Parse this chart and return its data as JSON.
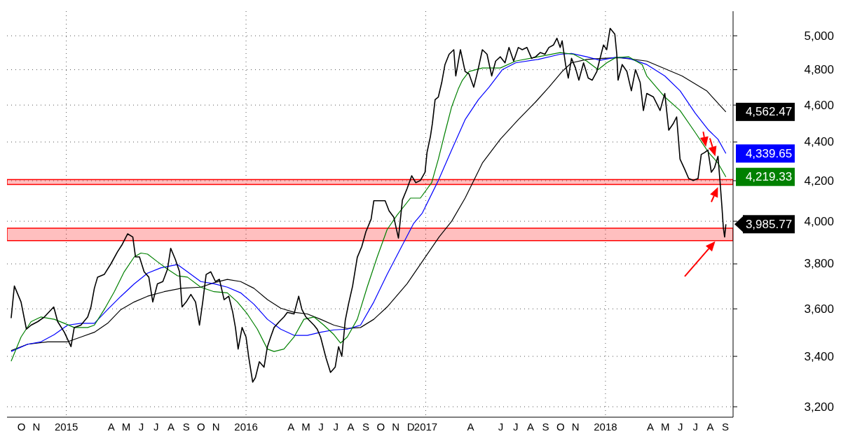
{
  "chart_data": {
    "type": "line",
    "log": "y",
    "grid": true,
    "xlim": [
      2014.67,
      2018.71
    ],
    "ylim": [
      3160,
      5150
    ],
    "yticks": [
      {
        "value": 3200,
        "label": "3,200"
      },
      {
        "value": 3400,
        "label": "3,400"
      },
      {
        "value": 3600,
        "label": "3,600"
      },
      {
        "value": 3800,
        "label": "3,800"
      },
      {
        "value": 4000,
        "label": "4,000"
      },
      {
        "value": 4200,
        "label": "4,200"
      },
      {
        "value": 4400,
        "label": "4,400"
      },
      {
        "value": 4600,
        "label": "4,600"
      },
      {
        "value": 4800,
        "label": "4,800"
      },
      {
        "value": 5000,
        "label": "5,000"
      }
    ],
    "xticks": [
      {
        "value": 2014.75,
        "label": "O"
      },
      {
        "value": 2014.833,
        "label": "N"
      },
      2015,
      {
        "value": 2015.25,
        "label": "A"
      },
      {
        "value": 2015.333,
        "label": "M"
      },
      {
        "value": 2015.417,
        "label": "J"
      },
      {
        "value": 2015.5,
        "label": "J"
      },
      {
        "value": 2015.583,
        "label": "A"
      },
      {
        "value": 2015.667,
        "label": "S"
      },
      {
        "value": 2015.75,
        "label": "O"
      },
      {
        "value": 2015.833,
        "label": "N"
      },
      2016,
      {
        "value": 2016.25,
        "label": "A"
      },
      {
        "value": 2016.333,
        "label": "M"
      },
      {
        "value": 2016.417,
        "label": "J"
      },
      {
        "value": 2016.5,
        "label": "J"
      },
      {
        "value": 2016.583,
        "label": "A"
      },
      {
        "value": 2016.667,
        "label": "S"
      },
      {
        "value": 2016.75,
        "label": "O"
      },
      {
        "value": 2016.833,
        "label": "N"
      },
      {
        "value": 2016.917,
        "label": "D"
      },
      2017,
      {
        "value": 2017.25,
        "label": "A"
      },
      {
        "value": 2017.417,
        "label": "J"
      },
      {
        "value": 2017.5,
        "label": "J"
      },
      {
        "value": 2017.583,
        "label": "A"
      },
      {
        "value": 2017.667,
        "label": "S"
      },
      {
        "value": 2017.75,
        "label": "O"
      },
      {
        "value": 2017.833,
        "label": "N"
      },
      2018,
      {
        "value": 2018.25,
        "label": "A"
      },
      {
        "value": 2018.333,
        "label": "M"
      },
      {
        "value": 2018.417,
        "label": "J"
      },
      {
        "value": 2018.5,
        "label": "J"
      },
      {
        "value": 2018.583,
        "label": "A"
      },
      {
        "value": 2018.667,
        "label": "S"
      }
    ],
    "series": [
      {
        "type": "line",
        "color": "#000000",
        "x": [
          2014.693,
          2014.711,
          2014.748,
          2014.778,
          2014.804,
          2014.841,
          2014.878,
          2014.93,
          2014.952,
          2014.989,
          2015.026,
          2015.044,
          2015.081,
          2015.119,
          2015.137,
          2015.156,
          2015.174,
          2015.211,
          2015.248,
          2015.285,
          2015.311,
          2015.341,
          2015.37,
          2015.385,
          2015.407,
          2015.433,
          2015.459,
          2015.481,
          2015.507,
          2015.537,
          2015.563,
          2015.581,
          2015.607,
          2015.63,
          2015.644,
          2015.667,
          2015.693,
          2015.719,
          2015.741,
          2015.759,
          2015.778,
          2015.804,
          2015.83,
          2015.852,
          2015.878,
          2015.904,
          2015.926,
          2015.941,
          2015.956,
          2015.978,
          2016.0,
          2016.015,
          2016.037,
          2016.052,
          2016.074,
          2016.1,
          2016.119,
          2016.137,
          2016.156,
          2016.185,
          2016.211,
          2016.23,
          2016.267,
          2016.293,
          2016.311,
          2016.333,
          2016.359,
          2016.378,
          2016.396,
          2016.415,
          2016.444,
          2016.47,
          2016.496,
          2016.515,
          2016.533,
          2016.552,
          2016.57,
          2016.593,
          2016.619,
          2016.644,
          2016.667,
          2016.696,
          2016.711,
          2016.774,
          2016.796,
          2016.822,
          2016.848,
          2016.87,
          2016.896,
          2016.922,
          2016.944,
          2016.97,
          2016.996,
          2017.007,
          2017.026,
          2017.037,
          2017.052,
          2017.07,
          2017.089,
          2017.107,
          2017.13,
          2017.156,
          2017.167,
          2017.193,
          2017.219,
          2017.241,
          2017.267,
          2017.293,
          2017.315,
          2017.341,
          2017.367,
          2017.389,
          2017.415,
          2017.441,
          2017.463,
          2017.489,
          2017.515,
          2017.537,
          2017.563,
          2017.589,
          2017.611,
          2017.637,
          2017.663,
          2017.685,
          2017.711,
          2017.73,
          2017.748,
          2017.759,
          2017.778,
          2017.793,
          2017.811,
          2017.833,
          2017.852,
          2017.878,
          2017.904,
          2017.926,
          2017.952,
          2017.97,
          2017.989,
          2018.007,
          2018.026,
          2018.052,
          2018.063,
          2018.07,
          2018.093,
          2018.119,
          2018.144,
          2018.167,
          2018.193,
          2018.211,
          2018.23,
          2018.267,
          2018.304,
          2018.33,
          2018.352,
          2018.378,
          2018.396,
          2018.415,
          2018.441,
          2018.463,
          2018.489,
          2018.515,
          2018.533,
          2018.552,
          2018.57,
          2018.589,
          2018.607,
          2018.626,
          2018.637,
          2018.648,
          2018.656,
          2018.663,
          2018.67
        ],
        "values": [
          3560,
          3700,
          3630,
          3513,
          3530,
          3545,
          3565,
          3608,
          3545,
          3500,
          3440,
          3520,
          3530,
          3565,
          3608,
          3690,
          3740,
          3752,
          3800,
          3856,
          3890,
          3940,
          3925,
          3832,
          3832,
          3764,
          3740,
          3630,
          3710,
          3720,
          3776,
          3872,
          3820,
          3764,
          3608,
          3630,
          3663,
          3630,
          3530,
          3630,
          3752,
          3764,
          3720,
          3730,
          3640,
          3655,
          3585,
          3520,
          3430,
          3520,
          3480,
          3396,
          3296,
          3314,
          3378,
          3356,
          3440,
          3480,
          3520,
          3545,
          3565,
          3585,
          3578,
          3655,
          3597,
          3565,
          3545,
          3530,
          3513,
          3480,
          3396,
          3335,
          3356,
          3440,
          3400,
          3550,
          3620,
          3700,
          3830,
          3880,
          3950,
          4010,
          4100,
          4100,
          4050,
          4020,
          3920,
          4103,
          4160,
          4225,
          4190,
          4201,
          4243,
          4345,
          4430,
          4500,
          4630,
          4645,
          4727,
          4830,
          4890,
          4917,
          4764,
          4917,
          4790,
          4775,
          4700,
          4810,
          4917,
          4890,
          4764,
          4850,
          4875,
          4840,
          4930,
          4850,
          4930,
          4917,
          4930,
          4866,
          4875,
          4900,
          4890,
          4930,
          4945,
          4985,
          4930,
          4970,
          4830,
          4752,
          4866,
          4810,
          4740,
          4840,
          4752,
          4740,
          4790,
          4866,
          4945,
          4917,
          5045,
          5010,
          4890,
          4740,
          4830,
          4790,
          4680,
          4800,
          4727,
          4570,
          4665,
          4645,
          4570,
          4665,
          4463,
          4500,
          4535,
          4310,
          4258,
          4211,
          4201,
          4211,
          4335,
          4345,
          4358,
          4243,
          4267,
          4325,
          4201,
          4071,
          3967,
          3925,
          3985.77
        ]
      },
      {
        "type": "line",
        "color": "#008000",
        "x": [
          2014.693,
          2014.748,
          2014.804,
          2014.859,
          2014.933,
          2014.989,
          2015.044,
          2015.119,
          2015.156,
          2015.211,
          2015.267,
          2015.322,
          2015.378,
          2015.415,
          2015.452,
          2015.507,
          2015.563,
          2015.619,
          2015.674,
          2015.748,
          2015.822,
          2015.896,
          2015.952,
          2016.007,
          2016.063,
          2016.119,
          2016.156,
          2016.211,
          2016.267,
          2016.322,
          2016.378,
          2016.433,
          2016.489,
          2016.526,
          2016.563,
          2016.619,
          2016.674,
          2016.73,
          2016.785,
          2016.841,
          2016.915,
          2016.97,
          2017.033,
          2017.07,
          2017.107,
          2017.144,
          2017.181,
          2017.204,
          2017.241,
          2017.315,
          2017.415,
          2017.5,
          2017.626,
          2017.748,
          2017.822,
          2017.896,
          2017.959,
          2018.007,
          2018.056,
          2018.13,
          2018.204,
          2018.23,
          2018.33,
          2018.415,
          2018.5,
          2018.574,
          2018.626,
          2018.67
        ],
        "values": [
          3380,
          3480,
          3545,
          3565,
          3555,
          3538,
          3520,
          3520,
          3530,
          3597,
          3675,
          3764,
          3832,
          3850,
          3845,
          3810,
          3776,
          3746,
          3740,
          3695,
          3675,
          3670,
          3630,
          3578,
          3513,
          3430,
          3420,
          3430,
          3480,
          3555,
          3565,
          3530,
          3490,
          3455,
          3480,
          3555,
          3695,
          3832,
          3960,
          4030,
          4113,
          4113,
          4190,
          4310,
          4450,
          4590,
          4690,
          4740,
          4790,
          4810,
          4810,
          4850,
          4875,
          4900,
          4890,
          4850,
          4800,
          4840,
          4870,
          4875,
          4830,
          4764,
          4645,
          4570,
          4450,
          4345,
          4290,
          4219.33
        ]
      },
      {
        "type": "line",
        "color": "#0000ff",
        "x": [
          2014.693,
          2014.785,
          2014.859,
          2014.933,
          2015.007,
          2015.081,
          2015.156,
          2015.23,
          2015.304,
          2015.378,
          2015.452,
          2015.526,
          2015.619,
          2015.674,
          2015.748,
          2015.822,
          2015.896,
          2015.97,
          2016.044,
          2016.119,
          2016.193,
          2016.267,
          2016.341,
          2016.415,
          2016.489,
          2016.563,
          2016.637,
          2016.711,
          2016.785,
          2016.933,
          2016.981,
          2017.07,
          2017.144,
          2017.219,
          2017.293,
          2017.352,
          2017.426,
          2017.5,
          2017.626,
          2017.748,
          2017.811,
          2017.896,
          2017.97,
          2018.056,
          2018.13,
          2018.23,
          2018.33,
          2018.415,
          2018.5,
          2018.574,
          2018.626,
          2018.67
        ],
        "values": [
          3420,
          3450,
          3460,
          3490,
          3530,
          3538,
          3538,
          3597,
          3655,
          3710,
          3758,
          3782,
          3797,
          3764,
          3720,
          3710,
          3695,
          3670,
          3620,
          3555,
          3513,
          3487,
          3487,
          3500,
          3510,
          3513,
          3530,
          3630,
          3752,
          3990,
          4040,
          4201,
          4358,
          4520,
          4630,
          4700,
          4800,
          4840,
          4860,
          4890,
          4895,
          4875,
          4855,
          4872,
          4866,
          4830,
          4764,
          4680,
          4555,
          4463,
          4415,
          4339.65
        ]
      },
      {
        "type": "line",
        "color": "#000000",
        "x": [
          2014.693,
          2014.785,
          2014.896,
          2015.007,
          2015.081,
          2015.156,
          2015.23,
          2015.304,
          2015.378,
          2015.452,
          2015.544,
          2015.637,
          2015.748,
          2015.822,
          2015.896,
          2015.97,
          2016.044,
          2016.119,
          2016.193,
          2016.267,
          2016.341,
          2016.415,
          2016.489,
          2016.563,
          2016.637,
          2016.711,
          2016.785,
          2016.896,
          2017.074,
          2017.144,
          2017.219,
          2017.315,
          2017.415,
          2017.515,
          2017.611,
          2017.685,
          2017.759,
          2017.811,
          2017.896,
          2017.981,
          2018.081,
          2018.23,
          2018.426,
          2018.563,
          2018.67
        ],
        "values": [
          3424,
          3450,
          3460,
          3460,
          3480,
          3500,
          3538,
          3597,
          3630,
          3655,
          3675,
          3690,
          3695,
          3715,
          3730,
          3720,
          3690,
          3640,
          3603,
          3585,
          3578,
          3555,
          3530,
          3516,
          3520,
          3555,
          3608,
          3710,
          3925,
          4000,
          4113,
          4290,
          4415,
          4520,
          4617,
          4700,
          4790,
          4840,
          4860,
          4866,
          4870,
          4850,
          4764,
          4680,
          4562.47
        ]
      }
    ],
    "bands": [
      {
        "axis": "y",
        "from": 3908,
        "to": 3967,
        "color": "#ff0000"
      },
      {
        "axis": "y",
        "from": 4181,
        "to": 4206,
        "color": "#ff0000"
      }
    ],
    "annotations": [
      "3,985.77",
      "4,219.33",
      "4,339.65",
      "4,562.47"
    ]
  }
}
